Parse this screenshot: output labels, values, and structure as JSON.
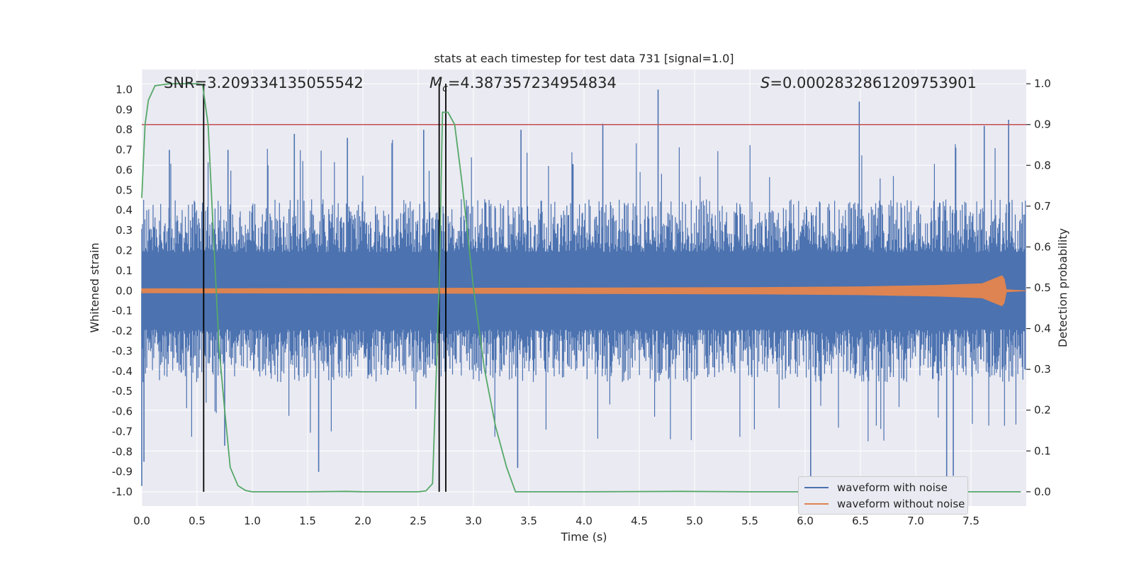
{
  "chart_data": {
    "type": "line",
    "title": "stats at each timestep for test data 731 [signal=1.0]",
    "xlabel": "Time (s)",
    "ylabel": "Whitened strain",
    "y2label": "Detection probability",
    "xlim": [
      0.0,
      8.0
    ],
    "ylim": [
      -1.07,
      1.1
    ],
    "y2lim": [
      -0.035,
      1.035
    ],
    "x_ticks": [
      "0.0",
      "0.5",
      "1.0",
      "1.5",
      "2.0",
      "2.5",
      "3.0",
      "3.5",
      "4.0",
      "4.5",
      "5.0",
      "5.5",
      "6.0",
      "6.5",
      "7.0",
      "7.5"
    ],
    "y_ticks": [
      "1.0",
      "0.9",
      "0.8",
      "0.7",
      "0.6",
      "0.5",
      "0.4",
      "0.3",
      "0.2",
      "0.1",
      "0.0",
      "-0.1",
      "-0.2",
      "-0.3",
      "-0.4",
      "-0.5",
      "-0.6",
      "-0.7",
      "-0.8",
      "-0.9",
      "-1.0"
    ],
    "y2_ticks": [
      "1.0",
      "0.9",
      "0.8",
      "0.7",
      "0.6",
      "0.5",
      "0.4",
      "0.3",
      "0.2",
      "0.1",
      "0.0"
    ],
    "grid": true,
    "annotations": {
      "snr": "SNR=3.209334135055542",
      "mc_symbol": "M",
      "mc_sub": "c",
      "mc_value": "=4.387357234954834",
      "s_symbol": "S",
      "s_value": "=0.0002832861209753901"
    },
    "threshold": {
      "axis": "right",
      "value": 0.9,
      "color": "#c44e52"
    },
    "vertical_markers": [
      0.56,
      2.69,
      2.75
    ],
    "series": [
      {
        "name": "waveform with noise",
        "axis": "left",
        "color": "#4c72b0",
        "envelope": {
          "typical_high": 0.35,
          "typical_low": -0.35
        },
        "peaks": [
          {
            "x": 0.0,
            "y": -0.97
          },
          {
            "x": 0.02,
            "y": -0.85
          },
          {
            "x": 0.25,
            "y": 0.7
          },
          {
            "x": 0.75,
            "y": -0.77
          },
          {
            "x": 0.78,
            "y": 0.7
          },
          {
            "x": 1.38,
            "y": 0.78
          },
          {
            "x": 1.6,
            "y": -0.9
          },
          {
            "x": 1.86,
            "y": 0.76
          },
          {
            "x": 2.55,
            "y": 0.8
          },
          {
            "x": 2.69,
            "y": -0.7
          },
          {
            "x": 3.4,
            "y": -0.88
          },
          {
            "x": 3.43,
            "y": 0.8
          },
          {
            "x": 4.17,
            "y": 0.83
          },
          {
            "x": 4.67,
            "y": 1.0
          },
          {
            "x": 6.05,
            "y": -0.95
          },
          {
            "x": 6.49,
            "y": 0.94
          },
          {
            "x": 7.28,
            "y": -0.94
          },
          {
            "x": 7.34,
            "y": -0.92
          },
          {
            "x": 7.62,
            "y": 0.82
          },
          {
            "x": 7.84,
            "y": 0.85
          }
        ]
      },
      {
        "name": "waveform without noise",
        "axis": "left",
        "color": "#dd8452",
        "envelope_amplitude": {
          "x": [
            0.0,
            2.0,
            4.0,
            5.5,
            6.5,
            7.2,
            7.6,
            7.78,
            7.8,
            7.82,
            8.0
          ],
          "y": [
            0.01,
            0.012,
            0.014,
            0.016,
            0.02,
            0.027,
            0.035,
            0.075,
            0.06,
            0.005,
            0.0
          ]
        }
      },
      {
        "name": "detection probability",
        "axis": "right",
        "color": "#55a868",
        "x": [
          0.0,
          0.03,
          0.06,
          0.12,
          0.25,
          0.4,
          0.5,
          0.55,
          0.6,
          0.65,
          0.7,
          0.75,
          0.8,
          0.87,
          0.94,
          1.0,
          1.5,
          1.85,
          2.0,
          2.5,
          2.57,
          2.63,
          2.69,
          2.72,
          2.77,
          2.83,
          2.9,
          3.0,
          3.1,
          3.2,
          3.3,
          3.38,
          3.5,
          4.0,
          4.87,
          5.5,
          6.0,
          6.5,
          7.0,
          7.5,
          7.95
        ],
        "y": [
          0.72,
          0.9,
          0.96,
          0.995,
          1.0,
          1.0,
          1.0,
          0.998,
          0.9,
          0.62,
          0.35,
          0.2,
          0.06,
          0.015,
          0.003,
          0.0,
          0.0,
          0.001,
          0.0,
          0.0,
          0.002,
          0.02,
          0.5,
          0.93,
          0.93,
          0.9,
          0.75,
          0.5,
          0.3,
          0.16,
          0.06,
          0.0,
          0.0,
          0.0,
          0.001,
          0.0,
          0.0,
          0.0,
          0.0,
          0.0,
          0.0
        ]
      }
    ],
    "legend": {
      "placement": "lower-right",
      "entries": [
        {
          "label": "waveform with noise",
          "color": "#4c72b0"
        },
        {
          "label": "waveform without noise",
          "color": "#dd8452"
        }
      ]
    }
  }
}
